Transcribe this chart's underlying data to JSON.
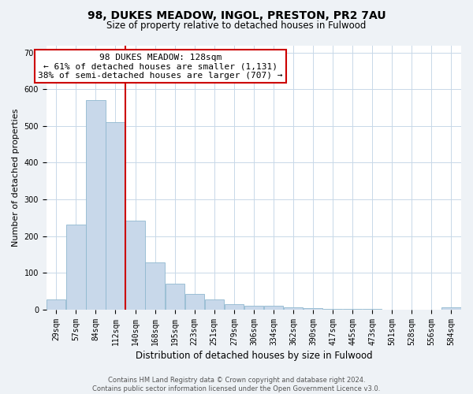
{
  "title": "98, DUKES MEADOW, INGOL, PRESTON, PR2 7AU",
  "subtitle": "Size of property relative to detached houses in Fulwood",
  "xlabel": "Distribution of detached houses by size in Fulwood",
  "ylabel": "Number of detached properties",
  "categories": [
    "29sqm",
    "57sqm",
    "84sqm",
    "112sqm",
    "140sqm",
    "168sqm",
    "195sqm",
    "223sqm",
    "251sqm",
    "279sqm",
    "306sqm",
    "334sqm",
    "362sqm",
    "390sqm",
    "417sqm",
    "445sqm",
    "473sqm",
    "501sqm",
    "528sqm",
    "556sqm",
    "584sqm"
  ],
  "values": [
    28,
    232,
    570,
    510,
    242,
    127,
    70,
    42,
    27,
    14,
    10,
    10,
    5,
    3,
    2,
    2,
    1,
    0,
    0,
    0,
    5
  ],
  "bar_color": "#c8d8ea",
  "bar_edge_color": "#90b8d0",
  "vline_color": "#cc0000",
  "vline_x_between": 3.5,
  "annotation_title": "98 DUKES MEADOW: 128sqm",
  "annotation_line1": "← 61% of detached houses are smaller (1,131)",
  "annotation_line2": "38% of semi-detached houses are larger (707) →",
  "annotation_box_edge_color": "#cc0000",
  "annotation_box_fill": "#ffffff",
  "ylim": [
    0,
    720
  ],
  "yticks": [
    0,
    100,
    200,
    300,
    400,
    500,
    600,
    700
  ],
  "footer_line1": "Contains HM Land Registry data © Crown copyright and database right 2024.",
  "footer_line2": "Contains public sector information licensed under the Open Government Licence v3.0.",
  "background_color": "#eef2f6",
  "plot_bg_color": "#ffffff",
  "grid_color": "#c8d8e8",
  "title_fontsize": 10,
  "subtitle_fontsize": 8.5,
  "ylabel_fontsize": 8,
  "xlabel_fontsize": 8.5,
  "tick_fontsize": 7,
  "annotation_fontsize": 8,
  "footer_fontsize": 6
}
